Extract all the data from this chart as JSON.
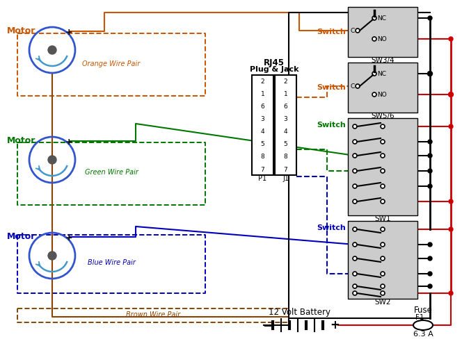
{
  "bg_color": "#ffffff",
  "orange_color": "#cc5500",
  "green_color": "#007700",
  "blue_color": "#0000bb",
  "brown_color": "#884400",
  "red_color": "#cc0000",
  "black_color": "#000000",
  "gray_color": "#cccccc",
  "motor_ring_color": "#3355cc",
  "motor_arc_color": "#4499cc",
  "motor_dot_color": "#555555",
  "sw34_label": "SW3/4",
  "sw56_label": "SW5/6",
  "sw1_label": "SW1",
  "sw2_label": "SW2",
  "rj45_line1": "RJ45",
  "rj45_line2": "Plug & Jack",
  "p1_label": "P1",
  "j1_label": "J1",
  "battery_label": "12 Volt Battery",
  "fuse_label": "Fuse",
  "fuse_id": "F1",
  "fuse_rating": "6.3 A",
  "orange_wire_label": "Orange Wire Pair",
  "green_wire_label": "Green Wire Pair",
  "blue_wire_label": "Blue Wire Pair",
  "brown_wire_label": "Brown Wire Pair",
  "nc_label": "NC",
  "no_label": "NO",
  "c_label": "C",
  "motor_label": "Motor",
  "switch_label": "Switch"
}
